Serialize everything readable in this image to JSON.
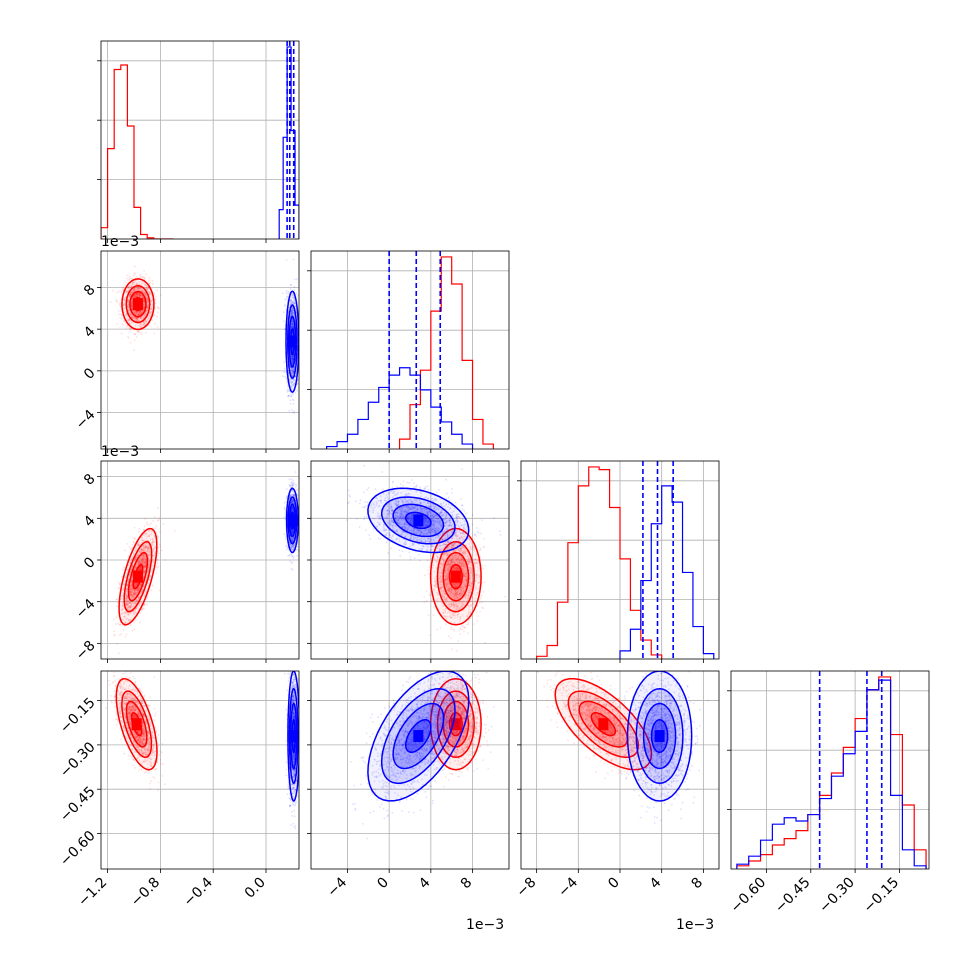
{
  "colors": {
    "red": "#ff0000",
    "blue": "#0000ff",
    "grid": "#b0b0b0"
  },
  "chart_data": {
    "type": "corner",
    "description_of_series": "two overlaid posterior sample sets",
    "series": [
      {
        "color": "red"
      },
      {
        "color": "blue"
      }
    ],
    "parameters": [
      {
        "range": [
          -1.25,
          0.25
        ],
        "ticks": [
          -1.2,
          -0.8,
          -0.4,
          0.0
        ],
        "tick_labels": [
          "−1.2",
          "−0.8",
          "−0.4",
          "0.0"
        ],
        "offset_label": ""
      },
      {
        "range": [
          -0.0075,
          0.0115
        ],
        "ticks": [
          -0.004,
          0.0,
          0.004,
          0.008
        ],
        "tick_labels": [
          "−4",
          "0",
          "4",
          "8"
        ],
        "offset_label": "1e−3"
      },
      {
        "range": [
          -0.0095,
          0.0095
        ],
        "ticks": [
          -0.008,
          -0.004,
          0.0,
          0.004,
          0.008
        ],
        "tick_labels": [
          "−8",
          "−4",
          "0",
          "4",
          "8"
        ],
        "offset_label": "1e−3"
      },
      {
        "range": [
          -0.72,
          -0.05
        ],
        "ticks": [
          -0.6,
          -0.45,
          -0.3,
          -0.15
        ],
        "tick_labels": [
          "−0.60",
          "−0.45",
          "−0.30",
          "−0.15"
        ],
        "offset_label": ""
      }
    ],
    "histograms": [
      {
        "param": 0,
        "red": {
          "edges": [
            -1.25,
            -1.2,
            -1.15,
            -1.1,
            -1.05,
            -1.0,
            -0.95,
            -0.9,
            -0.85,
            -0.8,
            -0.75,
            -0.7
          ],
          "counts": [
            50,
            400,
            750,
            770,
            500,
            140,
            20,
            5,
            0,
            0,
            0
          ]
        },
        "blue": {
          "edges": [
            0.1,
            0.13,
            0.16,
            0.19,
            0.22,
            0.25
          ],
          "counts": [
            130,
            450,
            850,
            480,
            150
          ]
        },
        "quantiles": {
          "blue": [
            0.16,
            0.18,
            0.21
          ]
        }
      },
      {
        "param": 1,
        "red": {
          "edges": [
            0.001,
            0.002,
            0.003,
            0.004,
            0.005,
            0.006,
            0.007,
            0.008,
            0.009,
            0.01
          ],
          "counts": [
            40,
            180,
            320,
            560,
            780,
            670,
            360,
            120,
            20
          ]
        },
        "blue": {
          "edges": [
            -0.006,
            -0.005,
            -0.004,
            -0.003,
            -0.002,
            -0.001,
            0.0,
            0.001,
            0.002,
            0.003,
            0.004,
            0.005,
            0.006,
            0.007,
            0.008
          ],
          "counts": [
            10,
            30,
            60,
            120,
            190,
            250,
            300,
            330,
            300,
            240,
            170,
            110,
            60,
            20
          ]
        },
        "quantiles": {
          "blue": [
            0.0,
            0.0026,
            0.0049
          ]
        }
      },
      {
        "param": 2,
        "red": {
          "edges": [
            -0.008,
            -0.007,
            -0.006,
            -0.005,
            -0.004,
            -0.003,
            -0.002,
            -0.001,
            0.0,
            0.001,
            0.002,
            0.003,
            0.004
          ],
          "counts": [
            10,
            50,
            210,
            430,
            640,
            710,
            700,
            560,
            370,
            180,
            70,
            15
          ]
        },
        "blue": {
          "edges": [
            0.0,
            0.001,
            0.002,
            0.003,
            0.004,
            0.005,
            0.006,
            0.007,
            0.008,
            0.009
          ],
          "counts": [
            30,
            110,
            290,
            500,
            640,
            580,
            320,
            120,
            20
          ]
        },
        "quantiles": {
          "blue": [
            0.0022,
            0.0036,
            0.0051
          ]
        }
      },
      {
        "param": 3,
        "red": {
          "edges": [
            -0.7,
            -0.66,
            -0.62,
            -0.58,
            -0.54,
            -0.5,
            -0.46,
            -0.42,
            -0.38,
            -0.34,
            -0.3,
            -0.26,
            -0.22,
            -0.18,
            -0.14,
            -0.1,
            -0.06
          ],
          "counts": [
            10,
            25,
            45,
            75,
            95,
            120,
            170,
            230,
            300,
            380,
            470,
            560,
            600,
            420,
            200,
            60
          ]
        },
        "blue": {
          "edges": [
            -0.7,
            -0.66,
            -0.62,
            -0.58,
            -0.54,
            -0.5,
            -0.46,
            -0.42,
            -0.38,
            -0.34,
            -0.3,
            -0.26,
            -0.22,
            -0.18,
            -0.14,
            -0.1,
            -0.06
          ],
          "counts": [
            15,
            40,
            90,
            140,
            160,
            150,
            170,
            220,
            290,
            360,
            430,
            560,
            590,
            230,
            60,
            10
          ]
        },
        "quantiles": {
          "blue": [
            -0.42,
            -0.26,
            -0.21
          ]
        }
      }
    ],
    "scatter_2d": [
      {
        "x_param": 0,
        "y_param": 1,
        "red": {
          "center": [
            -0.97,
            0.0064
          ],
          "sd": [
            0.055,
            0.0011
          ],
          "corr": 0.0
        },
        "blue": {
          "center": [
            0.2,
            0.0028
          ],
          "sd": [
            0.022,
            0.0022
          ],
          "corr": 0.0
        }
      },
      {
        "x_param": 0,
        "y_param": 2,
        "red": {
          "center": [
            -0.97,
            -0.0016
          ],
          "sd": [
            0.065,
            0.0021
          ],
          "corr": 0.65
        },
        "blue": {
          "center": [
            0.2,
            0.0038
          ],
          "sd": [
            0.02,
            0.0014
          ],
          "corr": 0.0
        }
      },
      {
        "x_param": 0,
        "y_param": 3,
        "red": {
          "center": [
            -0.98,
            -0.23
          ],
          "sd": [
            0.07,
            0.07
          ],
          "corr": -0.6
        },
        "blue": {
          "center": [
            0.21,
            -0.27
          ],
          "sd": [
            0.02,
            0.1
          ],
          "corr": 0.0
        }
      },
      {
        "x_param": 1,
        "y_param": 2,
        "red": {
          "center": [
            0.0064,
            -0.0016
          ],
          "sd": [
            0.0011,
            0.0021
          ],
          "corr": 0.0
        },
        "blue": {
          "center": [
            0.0028,
            0.0038
          ],
          "sd": [
            0.0022,
            0.0014
          ],
          "corr": -0.3
        }
      },
      {
        "x_param": 1,
        "y_param": 3,
        "red": {
          "center": [
            0.0064,
            -0.23
          ],
          "sd": [
            0.0011,
            0.07
          ],
          "corr": 0.0
        },
        "blue": {
          "center": [
            0.0028,
            -0.27
          ],
          "sd": [
            0.0022,
            0.1
          ],
          "corr": 0.55
        }
      },
      {
        "x_param": 2,
        "y_param": 3,
        "red": {
          "center": [
            -0.0016,
            -0.23
          ],
          "sd": [
            0.0021,
            0.07
          ],
          "corr": -0.65
        },
        "blue": {
          "center": [
            0.0038,
            -0.27
          ],
          "sd": [
            0.0014,
            0.1
          ],
          "corr": 0.0
        }
      }
    ],
    "grid": true
  }
}
